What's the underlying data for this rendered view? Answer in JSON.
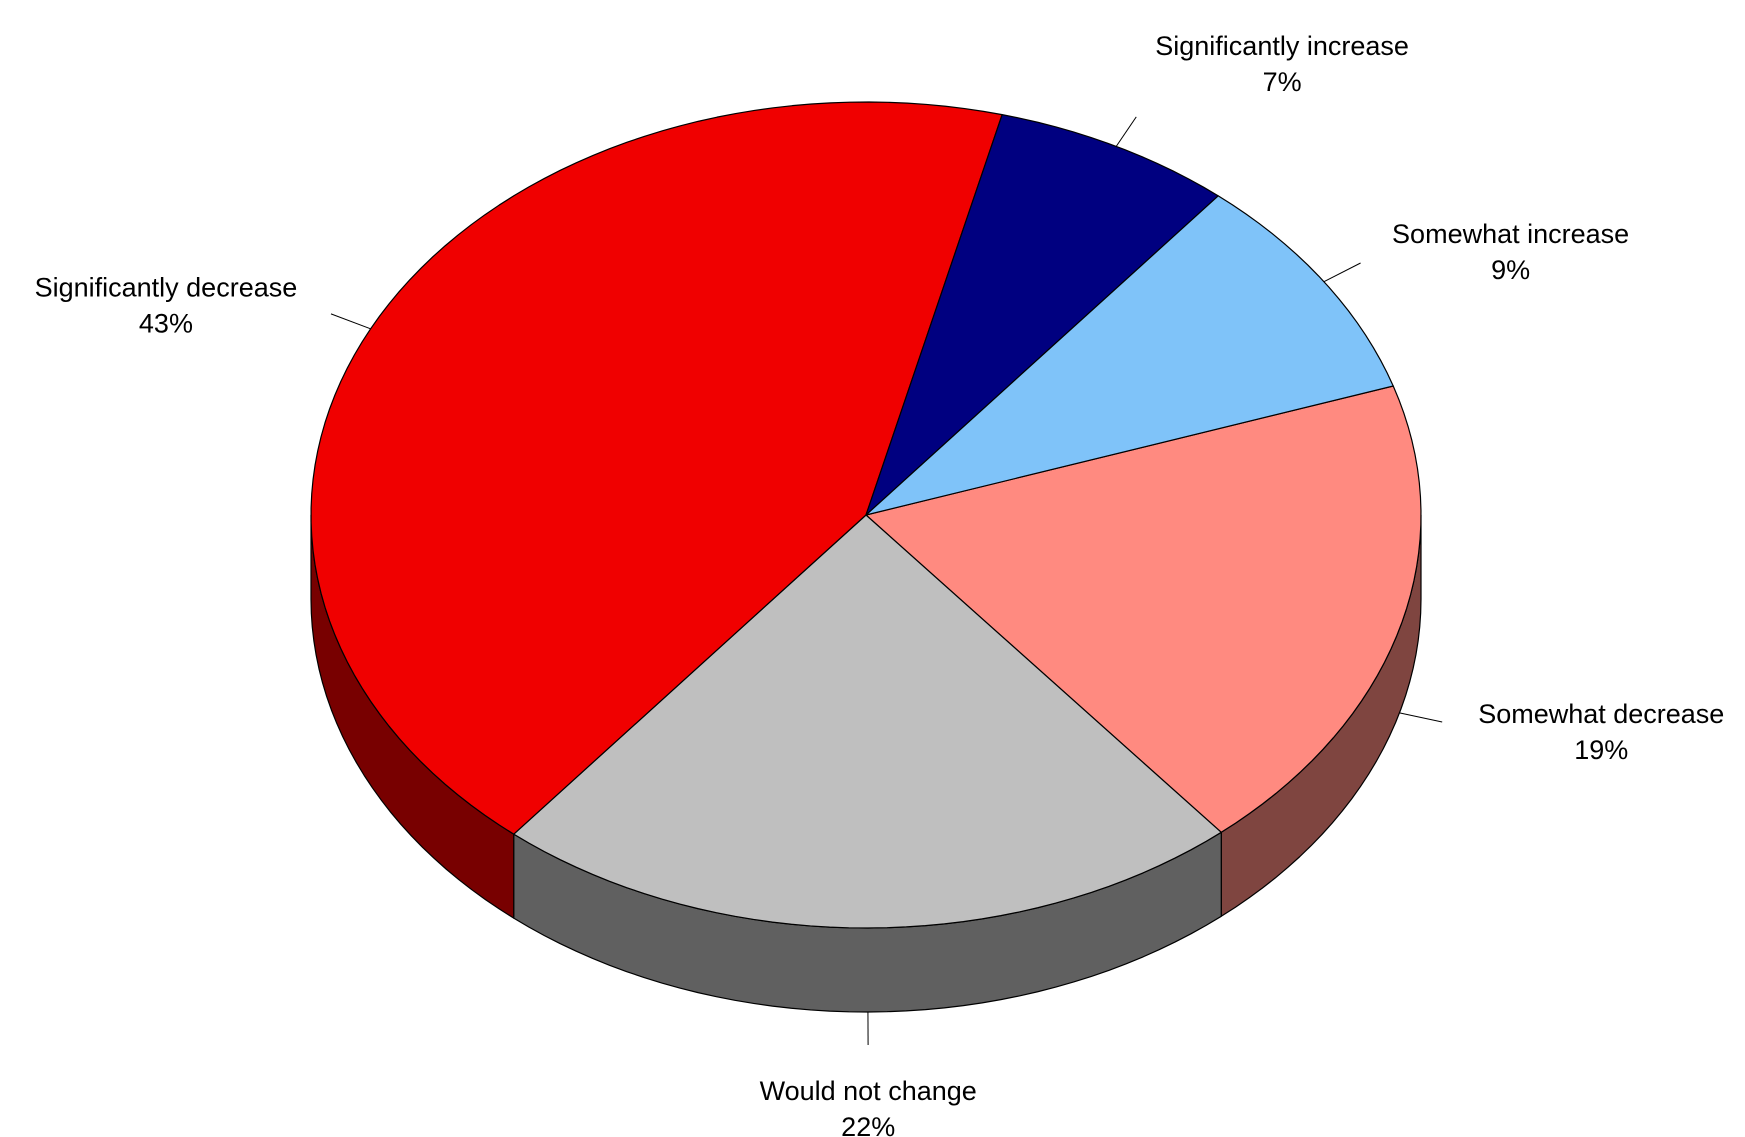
{
  "chart_data": {
    "type": "pie",
    "style": "3d",
    "title": "",
    "start_direction": "right",
    "direction": "clockwise",
    "slices": [
      {
        "label": "Somewhat decrease",
        "value_label": "19%",
        "value": 19,
        "color": "#FF8A80",
        "side_color": "#7F4540",
        "label_side": "right"
      },
      {
        "label": "Would not change",
        "value_label": "22%",
        "value": 22,
        "color": "#BFBFBF",
        "side_color": "#606060",
        "label_side": "bottom"
      },
      {
        "label": "Significantly decrease",
        "value_label": "43%",
        "value": 43,
        "color": "#F00000",
        "side_color": "#780000",
        "label_side": "left"
      },
      {
        "label": "Significantly increase",
        "value_label": "7%",
        "value": 7,
        "color": "#000080",
        "side_color": "#000040",
        "label_side": "top"
      },
      {
        "label": "Somewhat increase",
        "value_label": "9%",
        "value": 9,
        "color": "#7FC3F9",
        "side_color": "#40627D",
        "label_side": "right"
      }
    ]
  }
}
